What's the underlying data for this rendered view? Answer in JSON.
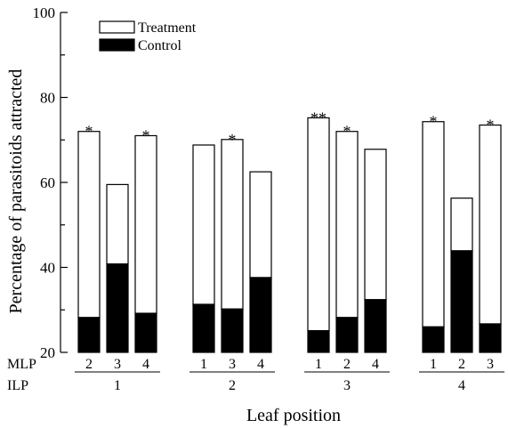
{
  "chart_data": {
    "type": "bar",
    "stacked": true,
    "ylabel": "Percentage of parasitoids attracted",
    "xlabel": "Leaf position",
    "ylim": [
      20,
      100
    ],
    "yticks": [
      20,
      40,
      60,
      80,
      100
    ],
    "legend": {
      "placement": "top-left",
      "entries": [
        {
          "name": "Treatment",
          "fill": "#ffffff"
        },
        {
          "name": "Control",
          "fill": "#000000"
        }
      ]
    },
    "row_labels": {
      "mlp": "MLP",
      "ilp": "ILP"
    },
    "groups": [
      {
        "ilp": "1",
        "bars": [
          {
            "mlp": "2",
            "control": 28.2,
            "total": 72.0,
            "sig": "*"
          },
          {
            "mlp": "3",
            "control": 40.8,
            "total": 59.5,
            "sig": ""
          },
          {
            "mlp": "4",
            "control": 29.2,
            "total": 71.0,
            "sig": "*"
          }
        ]
      },
      {
        "ilp": "2",
        "bars": [
          {
            "mlp": "1",
            "control": 31.3,
            "total": 68.8,
            "sig": ""
          },
          {
            "mlp": "3",
            "control": 30.2,
            "total": 70.1,
            "sig": "*"
          },
          {
            "mlp": "4",
            "control": 37.6,
            "total": 62.5,
            "sig": ""
          }
        ]
      },
      {
        "ilp": "3",
        "bars": [
          {
            "mlp": "1",
            "control": 25.1,
            "total": 75.2,
            "sig": "**"
          },
          {
            "mlp": "2",
            "control": 28.2,
            "total": 72.0,
            "sig": "*"
          },
          {
            "mlp": "4",
            "control": 32.4,
            "total": 67.8,
            "sig": ""
          }
        ]
      },
      {
        "ilp": "4",
        "bars": [
          {
            "mlp": "1",
            "control": 26.0,
            "total": 74.3,
            "sig": "*"
          },
          {
            "mlp": "2",
            "control": 43.9,
            "total": 56.3,
            "sig": ""
          },
          {
            "mlp": "3",
            "control": 26.7,
            "total": 73.5,
            "sig": "*"
          }
        ]
      }
    ]
  }
}
